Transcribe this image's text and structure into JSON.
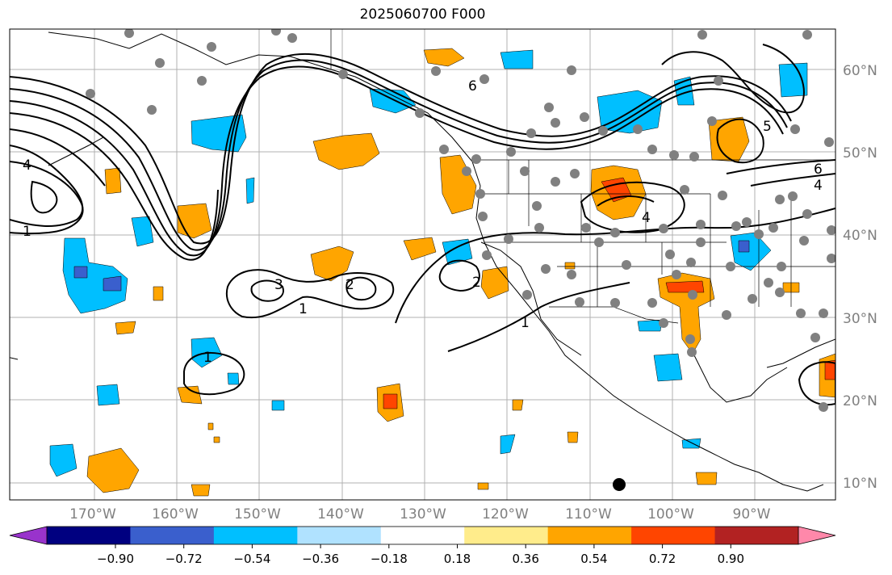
{
  "title": "2025060700 F000",
  "lat_ticks": [
    "60°N",
    "50°N",
    "40°N",
    "30°N",
    "20°N",
    "10°N"
  ],
  "lon_ticks": [
    "170°W",
    "160°W",
    "150°W",
    "140°W",
    "130°W",
    "120°W",
    "110°W",
    "100°W",
    "90°W"
  ],
  "colorbar": {
    "colors": [
      "#9933cc",
      "#000080",
      "#3a5fcd",
      "#00bfff",
      "#b0e2ff",
      "#ffffff",
      "#ffec8b",
      "#ffa500",
      "#ff4500",
      "#b22222",
      "#ff88aa"
    ],
    "labels": [
      "−0.90",
      "−0.72",
      "−0.54",
      "−0.36",
      "−0.18",
      "0.18",
      "0.36",
      "0.54",
      "0.72",
      "0.90"
    ]
  },
  "contour_labels": [
    "6",
    "5",
    "4",
    "3",
    "2",
    "1"
  ],
  "map_colors": {
    "positive_weak": "#ffa500",
    "positive_strong": "#ff4500",
    "negative_weak": "#00bfff",
    "negative_strong": "#3a5fcd",
    "stations": "#808080"
  }
}
